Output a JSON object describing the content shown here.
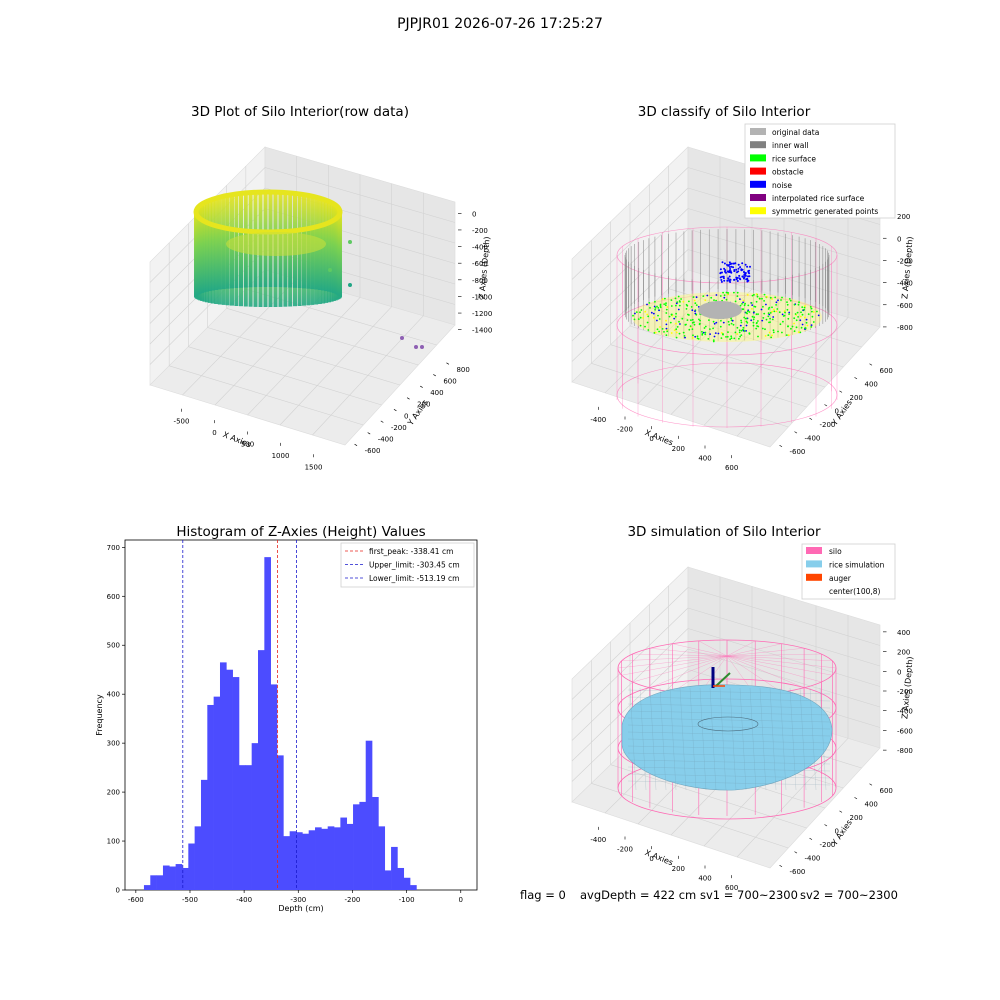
{
  "figure_title": "PJPJR01 2026-07-26 17:25:27",
  "footer": {
    "flag": "flag = 0",
    "avg_depth": "avgDepth = 422 cm",
    "sv1": "sv1 = 700~2300",
    "sv2": "sv2 = 700~2300"
  },
  "colors": {
    "histogram": "#4c4cff",
    "first_peak": "#e8261e",
    "limits": "#1a1acd",
    "silo": "#ff69b4",
    "rice_simulation": "#87ceeb",
    "auger": "#ff4500",
    "original_data": "#b3b3b3",
    "inner_wall": "#808080",
    "rice_surface": "#00ff00",
    "obstacle": "#ff0000",
    "noise": "#0000ff",
    "interpolated_rice_surface": "#800080",
    "symmetric_generated_points": "#ffff00"
  },
  "chart_data": [
    {
      "type": "scatter",
      "subtype": "3d",
      "title": "3D Plot of Silo Interior(row data)",
      "xlabel": "X Axies",
      "ylabel": "Y Axies",
      "zlabel": "Z Axies (Depth)",
      "x_ticks": [
        "-500",
        "0",
        "500",
        "1000",
        "1500"
      ],
      "y_ticks": [
        "-600",
        "-400",
        "-200",
        "0",
        "200",
        "400",
        "600",
        "800"
      ],
      "z_ticks": [
        "0",
        "-200",
        "-400",
        "-600",
        "-800",
        "-1000",
        "-1200",
        "-1400"
      ]
    },
    {
      "type": "scatter",
      "subtype": "3d",
      "title": "3D classify of Silo Interior",
      "xlabel": "X Axies",
      "ylabel": "Y Axies",
      "zlabel": "Z Axies (Depth)",
      "x_ticks": [
        "-400",
        "-200",
        "0",
        "200",
        "400",
        "600"
      ],
      "y_ticks": [
        "-600",
        "-400",
        "-200",
        "0",
        "200",
        "400",
        "600"
      ],
      "z_ticks": [
        "200",
        "0",
        "-200",
        "-400",
        "-600",
        "-800"
      ],
      "z_ticks_partial": [
        "00"
      ],
      "legend": [
        "original data",
        "inner wall",
        "rice surface",
        "obstacle",
        "noise",
        "interpolated rice surface",
        "symmetric generated points"
      ],
      "legend_colors": [
        "#b3b3b3",
        "#808080",
        "#00ff00",
        "#ff0000",
        "#0000ff",
        "#800080",
        "#ffff00"
      ]
    },
    {
      "type": "bar",
      "subtype": "histogram",
      "title": "Histogram of Z-Axies (Height) Values",
      "xlabel": "Depth (cm)",
      "ylabel": "Frequency",
      "xlim": [
        -620,
        30
      ],
      "ylim": [
        0,
        715
      ],
      "x_ticks": [
        -600,
        -500,
        -400,
        -300,
        -200,
        -100,
        0
      ],
      "y_ticks": [
        0,
        100,
        200,
        300,
        400,
        500,
        600,
        700
      ],
      "bin_width": 11.7,
      "bin_start": -585,
      "values": [
        10,
        30,
        30,
        50,
        48,
        53,
        45,
        95,
        130,
        225,
        378,
        395,
        465,
        450,
        435,
        255,
        255,
        300,
        490,
        680,
        420,
        275,
        110,
        120,
        118,
        115,
        122,
        128,
        125,
        130,
        128,
        148,
        135,
        175,
        180,
        305,
        190,
        130,
        40,
        88,
        45,
        25,
        10
      ],
      "lines": [
        {
          "name": "first_peak: -338.41 cm",
          "x": -338.41,
          "color": "#e8261e"
        },
        {
          "name": "Upper_limit: -303.45 cm",
          "x": -303.45,
          "color": "#1a1acd"
        },
        {
          "name": "Lower_limit: -513.19 cm",
          "x": -513.19,
          "color": "#1a1acd"
        }
      ]
    },
    {
      "type": "area",
      "subtype": "3d-surface",
      "title": "3D simulation of Silo Interior",
      "xlabel": "X Axies",
      "ylabel": "Y Axies",
      "zlabel": "Z Axies (Depth)",
      "x_ticks": [
        "-400",
        "-200",
        "0",
        "200",
        "400",
        "600"
      ],
      "y_ticks": [
        "-600",
        "-400",
        "-200",
        "0",
        "200",
        "400",
        "600"
      ],
      "z_ticks": [
        "400",
        "200",
        "0",
        "-200",
        "-400",
        "-600",
        "-800"
      ],
      "legend": [
        "silo",
        "rice simulation",
        "auger",
        "center(100,8)"
      ],
      "legend_colors": [
        "#ff69b4",
        "#87ceeb",
        "#ff4500",
        ""
      ]
    }
  ]
}
